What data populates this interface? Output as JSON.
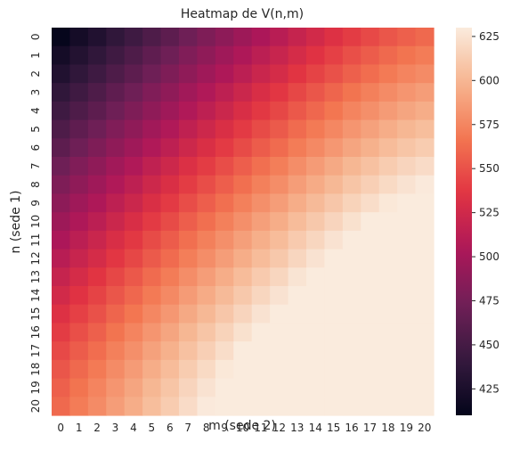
{
  "chart_data": {
    "type": "heatmap",
    "title": "Heatmap de V(n,m)",
    "xlabel": "m (sede 2)",
    "ylabel": "n (sede 1)",
    "x_categories": [
      "0",
      "1",
      "2",
      "3",
      "4",
      "5",
      "6",
      "7",
      "8",
      "9",
      "10",
      "11",
      "12",
      "13",
      "14",
      "15",
      "16",
      "17",
      "18",
      "19",
      "20"
    ],
    "y_categories": [
      "0",
      "1",
      "2",
      "3",
      "4",
      "5",
      "6",
      "7",
      "8",
      "9",
      "10",
      "11",
      "12",
      "13",
      "14",
      "15",
      "16",
      "17",
      "18",
      "19",
      "20"
    ],
    "value_range": [
      410,
      630
    ],
    "colorbar_ticks": [
      425,
      450,
      475,
      500,
      525,
      550,
      575,
      600,
      625
    ],
    "colorbar_tick_labels": [
      "425",
      "450",
      "475",
      "500",
      "525",
      "550",
      "575",
      "600",
      "625"
    ],
    "colormap": "rocket",
    "colormap_stops": [
      "#03051a",
      "#35193e",
      "#701f57",
      "#ad1759",
      "#e13342",
      "#f37651",
      "#f6b48f",
      "#faebdd"
    ],
    "values": [
      [
        412,
        421,
        429,
        438,
        446,
        455,
        463,
        472,
        480,
        488,
        496,
        504,
        511,
        519,
        526,
        533,
        540,
        546,
        552,
        557,
        561
      ],
      [
        421,
        430,
        438,
        447,
        455,
        464,
        472,
        481,
        489,
        497,
        505,
        513,
        520,
        528,
        535,
        542,
        549,
        555,
        561,
        566,
        570
      ],
      [
        429,
        438,
        446,
        455,
        463,
        472,
        480,
        489,
        497,
        505,
        513,
        521,
        528,
        536,
        543,
        550,
        557,
        563,
        569,
        574,
        578
      ],
      [
        438,
        447,
        455,
        464,
        472,
        481,
        489,
        498,
        506,
        514,
        522,
        530,
        537,
        545,
        552,
        559,
        566,
        572,
        578,
        583,
        587
      ],
      [
        446,
        455,
        463,
        472,
        480,
        489,
        497,
        506,
        514,
        522,
        530,
        538,
        545,
        553,
        560,
        567,
        574,
        580,
        586,
        591,
        595
      ],
      [
        455,
        464,
        472,
        481,
        489,
        498,
        506,
        515,
        523,
        531,
        539,
        547,
        554,
        562,
        569,
        576,
        583,
        589,
        595,
        600,
        604
      ],
      [
        463,
        472,
        480,
        489,
        497,
        506,
        514,
        523,
        531,
        539,
        547,
        555,
        562,
        570,
        577,
        584,
        591,
        597,
        603,
        608,
        612
      ],
      [
        472,
        481,
        489,
        498,
        506,
        515,
        523,
        532,
        540,
        548,
        556,
        564,
        571,
        579,
        586,
        593,
        600,
        606,
        612,
        617,
        621
      ],
      [
        480,
        489,
        497,
        506,
        514,
        523,
        531,
        540,
        548,
        556,
        564,
        572,
        579,
        587,
        594,
        601,
        608,
        614,
        620,
        625,
        629
      ],
      [
        488,
        497,
        505,
        514,
        522,
        531,
        539,
        548,
        556,
        564,
        572,
        580,
        587,
        595,
        602,
        609,
        616,
        622,
        628,
        630,
        630
      ],
      [
        496,
        505,
        513,
        522,
        530,
        539,
        547,
        556,
        564,
        572,
        580,
        588,
        595,
        603,
        610,
        617,
        624,
        630,
        630,
        630,
        630
      ],
      [
        504,
        513,
        521,
        530,
        538,
        547,
        555,
        564,
        572,
        580,
        588,
        596,
        603,
        611,
        618,
        625,
        630,
        630,
        630,
        630,
        630
      ],
      [
        511,
        520,
        528,
        537,
        545,
        554,
        562,
        571,
        579,
        587,
        595,
        603,
        610,
        618,
        625,
        630,
        630,
        630,
        630,
        630,
        630
      ],
      [
        519,
        528,
        536,
        545,
        553,
        562,
        570,
        579,
        587,
        595,
        603,
        611,
        618,
        626,
        630,
        630,
        630,
        630,
        630,
        630,
        630
      ],
      [
        526,
        535,
        543,
        552,
        560,
        569,
        577,
        586,
        594,
        602,
        610,
        618,
        625,
        630,
        630,
        630,
        630,
        630,
        630,
        630,
        630
      ],
      [
        533,
        542,
        550,
        559,
        567,
        576,
        584,
        593,
        601,
        609,
        617,
        625,
        630,
        630,
        630,
        630,
        630,
        630,
        630,
        630,
        630
      ],
      [
        540,
        549,
        557,
        566,
        574,
        583,
        591,
        600,
        608,
        616,
        624,
        630,
        630,
        630,
        630,
        630,
        630,
        630,
        630,
        630,
        630
      ],
      [
        546,
        555,
        563,
        572,
        580,
        589,
        597,
        606,
        614,
        622,
        630,
        630,
        630,
        630,
        630,
        630,
        630,
        630,
        630,
        630,
        630
      ],
      [
        552,
        561,
        569,
        578,
        586,
        595,
        603,
        612,
        620,
        628,
        630,
        630,
        630,
        630,
        630,
        630,
        630,
        630,
        630,
        630,
        630
      ],
      [
        557,
        566,
        574,
        583,
        591,
        600,
        608,
        617,
        625,
        630,
        630,
        630,
        630,
        630,
        630,
        630,
        630,
        630,
        630,
        630,
        630
      ],
      [
        561,
        570,
        578,
        587,
        595,
        604,
        612,
        621,
        629,
        630,
        630,
        630,
        630,
        630,
        630,
        630,
        630,
        630,
        630,
        630,
        630
      ]
    ]
  }
}
